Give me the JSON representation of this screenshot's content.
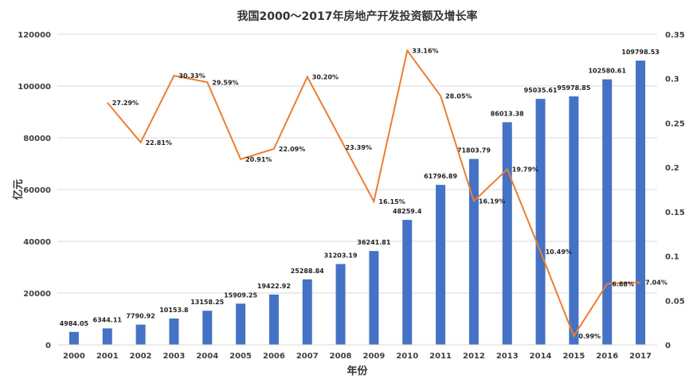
{
  "chart_data": {
    "type": "bar+line",
    "title": "我国2000～2017年房地产开发投资额及增长率",
    "xlabel": "年份",
    "ylabel": "亿元",
    "categories": [
      "2000",
      "2001",
      "2002",
      "2003",
      "2004",
      "2005",
      "2006",
      "2007",
      "2008",
      "2009",
      "2010",
      "2011",
      "2012",
      "2013",
      "2014",
      "2015",
      "2016",
      "2017"
    ],
    "series": [
      {
        "name": "房地产开发投资额",
        "kind": "bar",
        "axis": "left",
        "color": "#4472C4",
        "values": [
          4984.05,
          6344.11,
          7790.92,
          10153.8,
          13158.25,
          15909.25,
          19422.92,
          25288.84,
          31203.19,
          36241.81,
          48259.4,
          61796.89,
          71803.79,
          86013.38,
          95035.61,
          95978.85,
          102580.61,
          109798.53
        ],
        "labels": [
          "4984.05",
          "6344.11",
          "7790.92",
          "10153.8",
          "13158.25",
          "15909.25",
          "19422.92",
          "25288.84",
          "31203.19",
          "36241.81",
          "48259.4",
          "61796.89",
          "71803.79",
          "86013.38",
          "95035.61",
          "95978.85",
          "102580.61",
          "109798.53"
        ]
      },
      {
        "name": "增长率",
        "kind": "line",
        "axis": "right",
        "color": "#ED7D31",
        "values": [
          null,
          0.2729,
          0.2281,
          0.3033,
          0.2959,
          0.2091,
          0.2209,
          0.302,
          null,
          0.1615,
          0.3316,
          0.2805,
          0.1619,
          0.1979,
          0.1049,
          0.0099,
          0.0688,
          0.0704
        ],
        "labels": [
          null,
          "27.29%",
          "22.81%",
          "30.33%",
          "29.59%",
          "20.91%",
          "22.09%",
          "30.20%",
          "23.39%",
          "16.15%",
          "33.16%",
          "28.05%",
          "16.19%",
          "19.79%",
          "10.49%",
          "0.99%",
          "6.88%",
          "7.04%"
        ]
      }
    ],
    "y_left": {
      "min": 0,
      "max": 120000,
      "step": 20000,
      "ticks": [
        "0",
        "20000",
        "40000",
        "60000",
        "80000",
        "100000",
        "120000"
      ]
    },
    "y_right": {
      "min": 0,
      "max": 0.35,
      "step": 0.05,
      "ticks": [
        "0",
        "0.05",
        "0.1",
        "0.15",
        "0.2",
        "0.25",
        "0.3",
        "0.35"
      ]
    },
    "grid": true
  }
}
